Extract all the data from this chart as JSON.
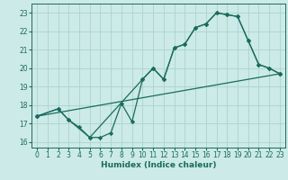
{
  "xlabel": "Humidex (Indice chaleur)",
  "bg_color": "#cceae7",
  "grid_color": "#aad4d0",
  "line_color": "#1a6b5e",
  "xlim": [
    -0.5,
    23.5
  ],
  "ylim": [
    15.7,
    23.5
  ],
  "xticks": [
    0,
    1,
    2,
    3,
    4,
    5,
    6,
    7,
    8,
    9,
    10,
    11,
    12,
    13,
    14,
    15,
    16,
    17,
    18,
    19,
    20,
    21,
    22,
    23
  ],
  "yticks": [
    16,
    17,
    18,
    19,
    20,
    21,
    22,
    23
  ],
  "curve1_x": [
    0,
    2,
    3,
    4,
    5,
    6,
    7,
    8,
    9,
    10,
    11,
    12,
    13,
    14,
    15,
    16,
    17,
    18,
    19,
    20,
    21,
    22,
    23
  ],
  "curve1_y": [
    17.4,
    17.8,
    17.2,
    16.8,
    16.25,
    16.25,
    16.5,
    18.1,
    17.1,
    19.4,
    20.0,
    19.4,
    21.1,
    21.3,
    22.2,
    22.4,
    23.0,
    22.9,
    22.8,
    21.5,
    20.2,
    20.0,
    19.7
  ],
  "curve2_x": [
    0,
    2,
    3,
    5,
    10,
    11,
    12,
    13,
    14,
    15,
    16,
    17,
    18,
    19,
    20,
    21,
    22,
    23
  ],
  "curve2_y": [
    17.4,
    17.8,
    17.2,
    16.25,
    19.4,
    20.0,
    19.4,
    21.1,
    21.3,
    22.2,
    22.4,
    23.0,
    22.9,
    22.8,
    21.5,
    20.2,
    20.0,
    19.7
  ],
  "line3_x": [
    0,
    23
  ],
  "line3_y": [
    17.4,
    19.7
  ],
  "xlabel_fontsize": 6.5,
  "tick_fontsize": 5.5
}
